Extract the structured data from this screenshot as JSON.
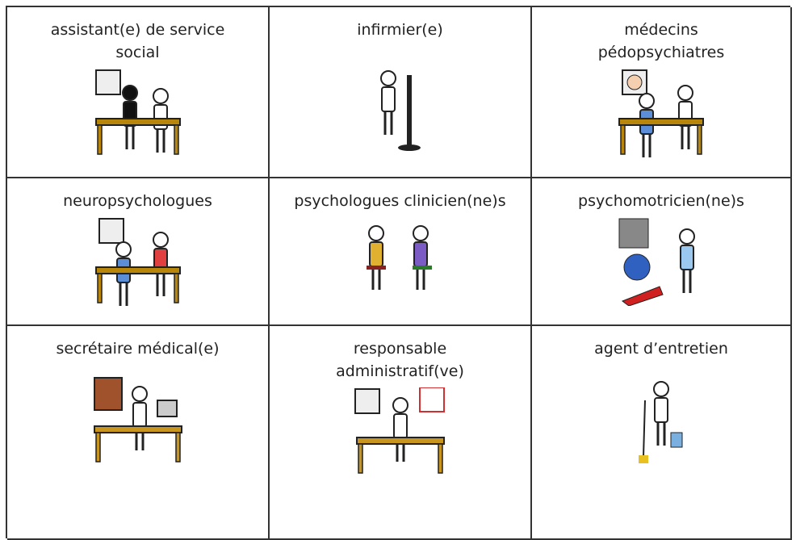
{
  "table": {
    "rows": [
      [
        "assistant(e) de service social",
        "infirmier(e)",
        "médecins pédopsychiatres"
      ],
      [
        "neuropsychologues",
        "psychologues clinicien(ne)s",
        "psychomotricien(ne)s"
      ],
      [
        "secrétaire médical(e)",
        "responsable administratif(ve)",
        "agent d’entretien"
      ]
    ]
  }
}
